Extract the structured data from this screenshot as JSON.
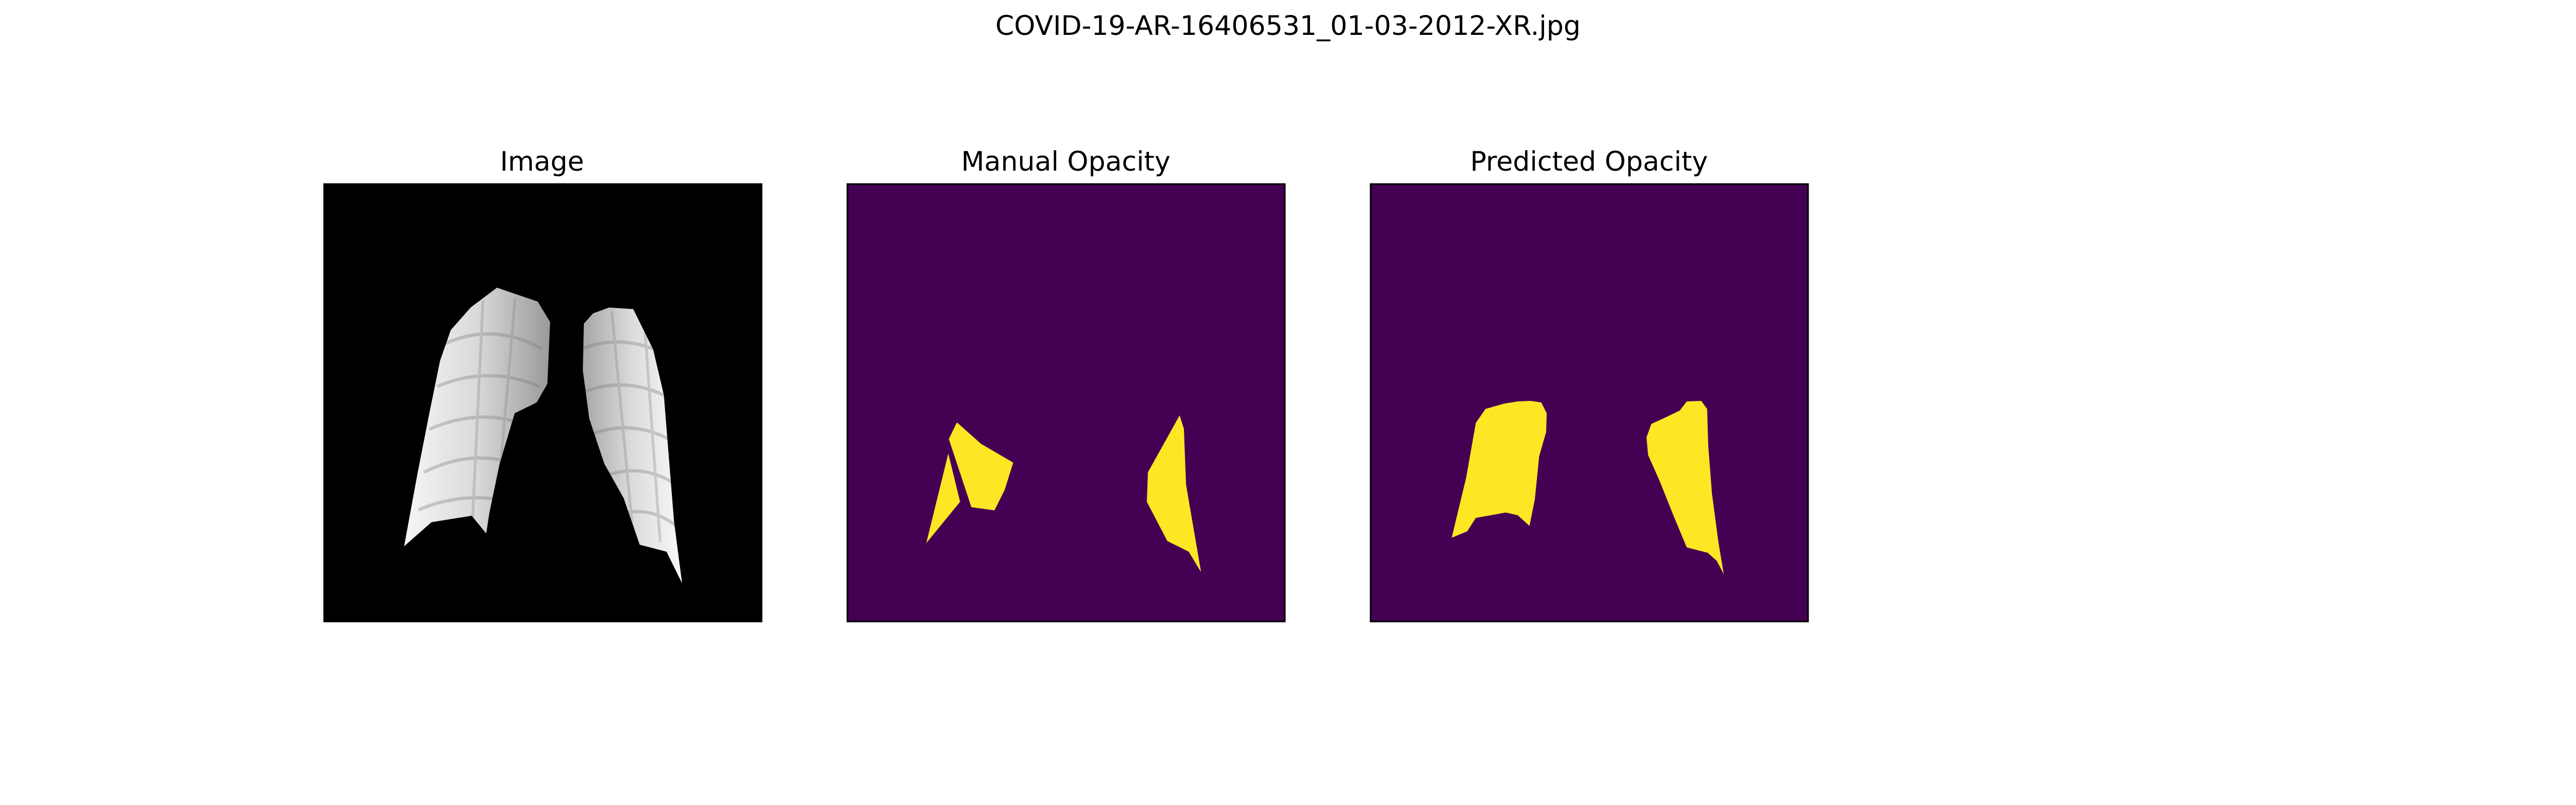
{
  "figure": {
    "title": "COVID-19-AR-16406531_01-03-2012-XR.jpg"
  },
  "panels": [
    {
      "title": "Image"
    },
    {
      "title": "Manual Opacity"
    },
    {
      "title": "Predicted Opacity"
    }
  ],
  "colors": {
    "background": "#ffffff",
    "image_background": "#000000",
    "mask_background": "#440154",
    "mask_foreground": "#fde725",
    "axes_frame": "#000000"
  }
}
